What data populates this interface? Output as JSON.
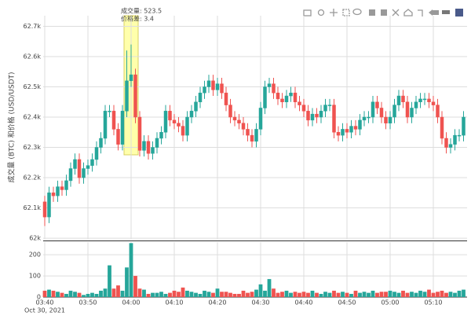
{
  "chart_data": {
    "type": "candlestick",
    "y_axis_title": "成交量 (BTC) 和价格 (USD/USDT)",
    "annotations": [
      "成交量: 523.5",
      "价格差: 3.4"
    ],
    "date_label": "Oct 30, 2021",
    "increasing_color": "#26a69a",
    "decreasing_color": "#ef5350",
    "x": [
      "03:40",
      "03:41",
      "03:42",
      "03:43",
      "03:44",
      "03:45",
      "03:46",
      "03:47",
      "03:48",
      "03:49",
      "03:50",
      "03:51",
      "03:52",
      "03:53",
      "03:54",
      "03:55",
      "03:56",
      "03:57",
      "03:58",
      "03:59",
      "04:00",
      "04:01",
      "04:02",
      "04:03",
      "04:04",
      "04:05",
      "04:06",
      "04:07",
      "04:08",
      "04:09",
      "04:10",
      "04:11",
      "04:12",
      "04:13",
      "04:14",
      "04:15",
      "04:16",
      "04:17",
      "04:18",
      "04:19",
      "04:20",
      "04:21",
      "04:22",
      "04:23",
      "04:24",
      "04:25",
      "04:26",
      "04:27",
      "04:28",
      "04:29",
      "04:30",
      "04:31",
      "04:32",
      "04:33",
      "04:34",
      "04:35",
      "04:36",
      "04:37",
      "04:38",
      "04:39",
      "04:40",
      "04:41",
      "04:42",
      "04:43",
      "04:44",
      "04:45",
      "04:46",
      "04:47",
      "04:48",
      "04:49",
      "04:50",
      "04:51",
      "04:52",
      "04:53",
      "04:54",
      "04:55",
      "04:56",
      "04:57",
      "04:58",
      "04:59",
      "05:00",
      "05:01",
      "05:02",
      "05:03",
      "05:04",
      "05:05",
      "05:06",
      "05:07",
      "05:08",
      "05:09",
      "05:10",
      "05:11",
      "05:12",
      "05:13",
      "05:14",
      "05:15",
      "05:16",
      "05:17"
    ],
    "open": [
      62120,
      62070,
      62150,
      62140,
      62170,
      62160,
      62190,
      62230,
      62260,
      62200,
      62230,
      62240,
      62260,
      62300,
      62330,
      62420,
      62420,
      62360,
      62310,
      62420,
      62520,
      62540,
      62400,
      62290,
      62320,
      62280,
      62300,
      62330,
      62350,
      62420,
      62390,
      62380,
      62370,
      62340,
      62400,
      62420,
      62450,
      62480,
      62500,
      62520,
      62490,
      62510,
      62480,
      62440,
      62400,
      62390,
      62380,
      62360,
      62340,
      62320,
      62360,
      62430,
      62500,
      62510,
      62480,
      62460,
      62450,
      62470,
      62480,
      62450,
      62440,
      62420,
      62390,
      62410,
      62400,
      62420,
      62440,
      62440,
      62350,
      62340,
      62360,
      62350,
      62370,
      62360,
      62390,
      62400,
      62400,
      62450,
      62430,
      62400,
      62380,
      62400,
      62440,
      62470,
      62450,
      62400,
      62430,
      62450,
      62460,
      62460,
      62450,
      62440,
      62400,
      62330,
      62300,
      62310,
      62340,
      62340
    ],
    "high": [
      62140,
      62170,
      62170,
      62190,
      62190,
      62210,
      62250,
      62280,
      62280,
      62250,
      62260,
      62280,
      62320,
      62350,
      62440,
      62440,
      62440,
      62380,
      62440,
      62620,
      62640,
      62560,
      62420,
      62340,
      62340,
      62320,
      62350,
      62370,
      62440,
      62440,
      62410,
      62400,
      62390,
      62420,
      62440,
      62470,
      62500,
      62520,
      62540,
      62540,
      62530,
      62530,
      62500,
      62460,
      62420,
      62410,
      62400,
      62380,
      62360,
      62380,
      62450,
      62520,
      62530,
      62530,
      62500,
      62480,
      62490,
      62500,
      62500,
      62470,
      62460,
      62440,
      62430,
      62430,
      62440,
      62460,
      62460,
      62460,
      62370,
      62380,
      62380,
      62390,
      62390,
      62410,
      62420,
      62420,
      62470,
      62470,
      62450,
      62420,
      62420,
      62460,
      62490,
      62490,
      62470,
      62450,
      62470,
      62480,
      62480,
      62480,
      62470,
      62460,
      62420,
      62350,
      62330,
      62360,
      62360,
      62420
    ],
    "low": [
      62040,
      62050,
      62120,
      62120,
      62140,
      62140,
      62170,
      62210,
      62180,
      62180,
      62210,
      62220,
      62240,
      62280,
      62310,
      62400,
      62340,
      62290,
      62290,
      62400,
      62500,
      62380,
      62270,
      62270,
      62260,
      62260,
      62280,
      62310,
      62330,
      62370,
      62360,
      62350,
      62320,
      62320,
      62380,
      62400,
      62430,
      62460,
      62480,
      62470,
      62470,
      62460,
      62420,
      62380,
      62370,
      62360,
      62340,
      62320,
      62300,
      62300,
      62340,
      62410,
      62480,
      62460,
      62440,
      62430,
      62430,
      62450,
      62430,
      62420,
      62400,
      62370,
      62370,
      62380,
      62380,
      62400,
      62420,
      62330,
      62320,
      62320,
      62330,
      62330,
      62340,
      62340,
      62370,
      62380,
      62380,
      62410,
      62380,
      62360,
      62360,
      62380,
      62420,
      62430,
      62380,
      62380,
      62410,
      62430,
      62440,
      62430,
      62420,
      62380,
      62310,
      62280,
      62280,
      62290,
      62320,
      62320
    ],
    "close": [
      62070,
      62150,
      62140,
      62170,
      62160,
      62190,
      62230,
      62260,
      62200,
      62230,
      62240,
      62260,
      62300,
      62330,
      62420,
      62420,
      62360,
      62310,
      62420,
      62520,
      62540,
      62400,
      62290,
      62320,
      62280,
      62300,
      62330,
      62350,
      62420,
      62390,
      62380,
      62370,
      62340,
      62400,
      62420,
      62450,
      62480,
      62500,
      62520,
      62490,
      62510,
      62480,
      62440,
      62400,
      62390,
      62380,
      62360,
      62340,
      62320,
      62360,
      62430,
      62500,
      62510,
      62480,
      62460,
      62450,
      62470,
      62480,
      62450,
      62440,
      62420,
      62390,
      62410,
      62400,
      62420,
      62440,
      62440,
      62350,
      62340,
      62360,
      62350,
      62370,
      62360,
      62390,
      62400,
      62400,
      62450,
      62430,
      62400,
      62380,
      62400,
      62440,
      62470,
      62450,
      62400,
      62430,
      62450,
      62460,
      62460,
      62450,
      62440,
      62400,
      62330,
      62300,
      62310,
      62340,
      62340,
      62400
    ],
    "volume": [
      30,
      35,
      30,
      25,
      20,
      15,
      30,
      25,
      20,
      10,
      15,
      20,
      15,
      30,
      40,
      150,
      40,
      55,
      30,
      140,
      255,
      100,
      40,
      35,
      15,
      20,
      20,
      25,
      15,
      20,
      30,
      25,
      45,
      30,
      25,
      20,
      15,
      30,
      25,
      20,
      40,
      25,
      25,
      20,
      15,
      15,
      30,
      20,
      25,
      35,
      60,
      30,
      85,
      40,
      20,
      25,
      30,
      20,
      25,
      20,
      25,
      20,
      30,
      20,
      15,
      25,
      20,
      30,
      20,
      25,
      20,
      15,
      30,
      20,
      25,
      20,
      30,
      20,
      25,
      25,
      30,
      25,
      20,
      30,
      20,
      25,
      20,
      30,
      25,
      35,
      20,
      25,
      30,
      20,
      25,
      20,
      30,
      35
    ],
    "ylim": [
      61995,
      62735
    ],
    "yticks": [
      {
        "value": 62000,
        "label": "62k"
      },
      {
        "value": 62100,
        "label": "62.1k"
      },
      {
        "value": 62200,
        "label": "62.2k"
      },
      {
        "value": 62300,
        "label": "62.3k"
      },
      {
        "value": 62400,
        "label": "62.4k"
      },
      {
        "value": 62500,
        "label": "62.5k"
      },
      {
        "value": 62600,
        "label": "62.6k"
      },
      {
        "value": 62700,
        "label": "62.7k"
      }
    ],
    "y2lim": [
      0,
      260
    ],
    "y2ticks": [
      0,
      100,
      200
    ],
    "xticks": [
      "03:40",
      "03:50",
      "04:00",
      "04:10",
      "04:20",
      "04:30",
      "04:40",
      "04:50",
      "05:00",
      "05:10"
    ],
    "grid": true
  }
}
